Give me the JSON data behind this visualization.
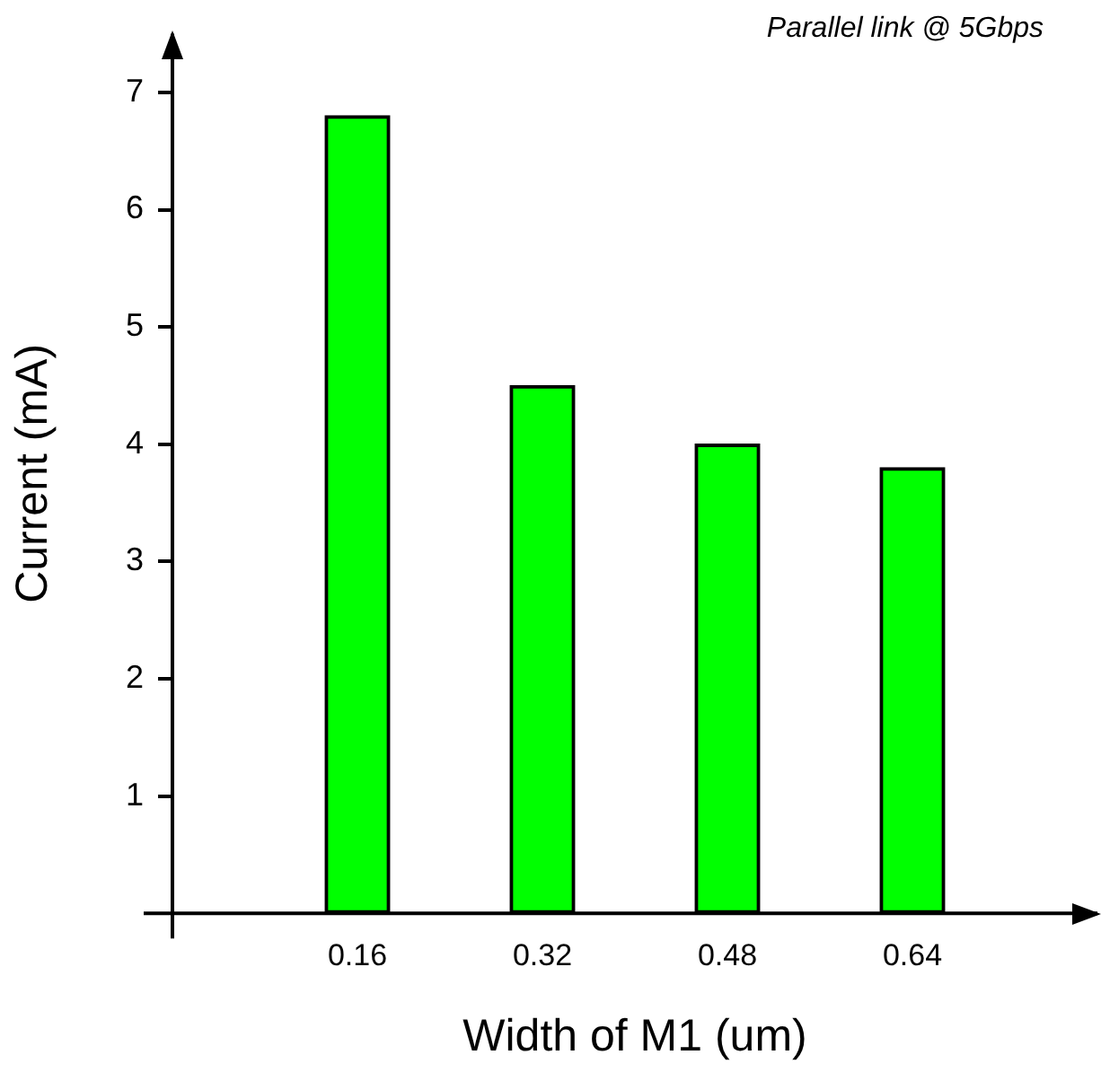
{
  "chart_data": {
    "type": "bar",
    "xlabel": "Width of M1 (um)",
    "ylabel": "Current (mA)",
    "categories": [
      "0.16",
      "0.32",
      "0.48",
      "0.64"
    ],
    "values": [
      6.8,
      4.5,
      4.0,
      3.8
    ],
    "color": "#00ff00",
    "ylim": [
      0,
      7.5
    ],
    "yticks": [
      1,
      2,
      3,
      4,
      5,
      6,
      7
    ],
    "grid": false,
    "legend": false,
    "annotations": [
      "Parallel link @ 5Gbps"
    ]
  }
}
